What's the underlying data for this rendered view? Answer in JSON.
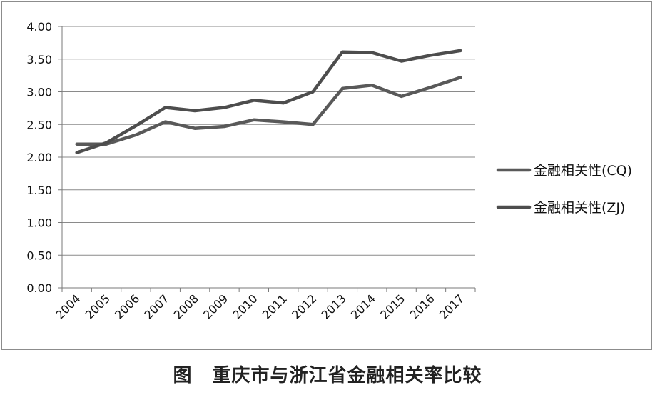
{
  "figure": {
    "prefix": "图",
    "title": "重庆市与浙江省金融相关率比较"
  },
  "chart_data": {
    "type": "line",
    "x": [
      "2004",
      "2005",
      "2006",
      "2007",
      "2008",
      "2009",
      "2010",
      "2011",
      "2012",
      "2013",
      "2014",
      "2015",
      "2016",
      "2017"
    ],
    "ylim": [
      0,
      4
    ],
    "yticks": [
      "0.00",
      "0.50",
      "1.00",
      "1.50",
      "2.00",
      "2.50",
      "3.00",
      "3.50",
      "4.00"
    ],
    "grid": true,
    "legend_position": "right",
    "series": [
      {
        "name": "金融相关性(CQ)",
        "color": "#595959",
        "values": [
          2.2,
          2.2,
          2.34,
          2.54,
          2.44,
          2.47,
          2.57,
          2.54,
          2.5,
          3.05,
          3.1,
          2.93,
          3.07,
          3.22
        ]
      },
      {
        "name": "金融相关性(ZJ)",
        "color": "#4d4d4d",
        "values": [
          2.07,
          2.22,
          2.48,
          2.76,
          2.71,
          2.76,
          2.87,
          2.83,
          3.0,
          3.61,
          3.6,
          3.47,
          3.56,
          3.63
        ]
      }
    ]
  }
}
